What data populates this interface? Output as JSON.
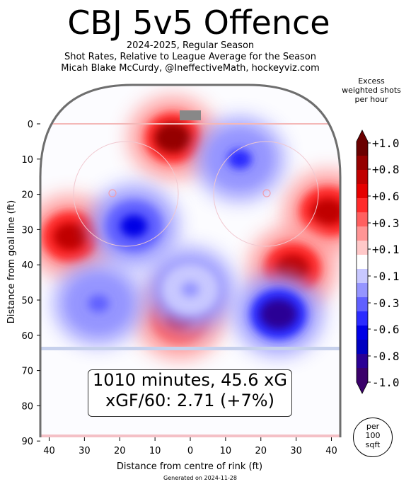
{
  "header": {
    "title": "CBJ 5v5 Offence",
    "subtitle1": "2024-2025, Regular Season",
    "subtitle2": "Shot Rates, Relative to League Average for the Season",
    "subtitle3": "Micah Blake McCurdy, @IneffectiveMath, hockeyviz.com"
  },
  "info": {
    "line1": "1010 minutes, 45.6 xG",
    "line2": "xGF/60: 2.71 (+7%)"
  },
  "per_badge": {
    "line1": "per",
    "line2": "100",
    "line3": "sqft"
  },
  "colorbar": {
    "title_line1": "Excess",
    "title_line2": "weighted shots",
    "title_line3": "per hour",
    "tick_labels": [
      "+1.0",
      "+0.8",
      "+0.6",
      "+0.3",
      "+0.1",
      "-0.1",
      "-0.3",
      "-0.6",
      "-0.8",
      "-1.0"
    ],
    "colors": [
      "#6a0000",
      "#950000",
      "#c00000",
      "#e60000",
      "#ff2b2b",
      "#ff6060",
      "#ff9595",
      "#ffc8c8",
      "#ffffff",
      "#c8c8ff",
      "#9595ff",
      "#6060ff",
      "#2b2bff",
      "#0000e6",
      "#0000c0",
      "#2a0095",
      "#3a006a"
    ]
  },
  "generated": "Generated on 2024-11-28",
  "chart_data": {
    "type": "heatmap",
    "title": "CBJ 5v5 Offence",
    "xlabel": "Distance from centre of rink (ft)",
    "ylabel": "Distance from goal line (ft)",
    "xticks": [
      40,
      30,
      20,
      10,
      0,
      10,
      20,
      30,
      40
    ],
    "yticks": [
      0,
      10,
      20,
      30,
      40,
      50,
      60,
      70,
      80,
      90
    ],
    "xlim": [
      -42.5,
      42.5
    ],
    "ylim": [
      -11,
      89
    ],
    "colorbar_range": [
      -1.0,
      1.0
    ],
    "hotspots": [
      {
        "x": 39,
        "y": 25,
        "value": 0.8
      },
      {
        "x": 29,
        "y": 41,
        "value": 0.8
      },
      {
        "x": -5,
        "y": 4,
        "value": 0.9
      },
      {
        "x": -34,
        "y": 32,
        "value": 0.8
      },
      {
        "x": -3,
        "y": 55,
        "value": 0.6
      },
      {
        "x": 14,
        "y": 10,
        "value": -0.5
      },
      {
        "x": -16,
        "y": 29,
        "value": -0.6
      },
      {
        "x": 25,
        "y": 54,
        "value": -0.9
      },
      {
        "x": -26,
        "y": 51,
        "value": -0.4
      },
      {
        "x": 0,
        "y": 47,
        "value": -0.3
      }
    ]
  }
}
